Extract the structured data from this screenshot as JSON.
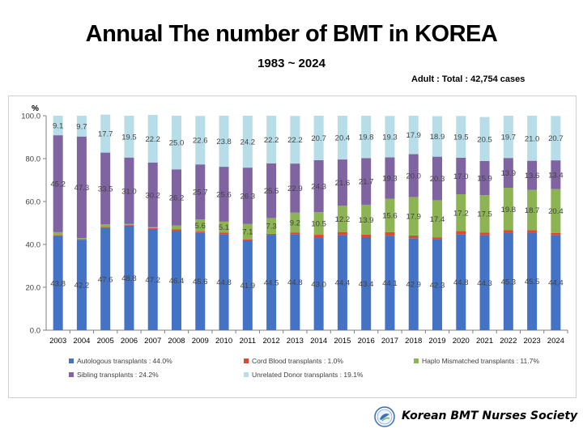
{
  "header": {
    "title": "Annual The number of BMT in KOREA",
    "subtitle": "1983 ~ 2024",
    "total_note": "Adult : Total : 42,754 cases"
  },
  "footer": {
    "organization": "Korean BMT Nurses Society"
  },
  "colors": {
    "autologous": "#4472c4",
    "cord_blood": "#e2472f",
    "haplo": "#8db452",
    "sibling": "#8064a2",
    "unrelated": "#b7dee8",
    "axis": "#7f7f7f"
  },
  "chart_data": {
    "type": "bar",
    "stacked": true,
    "ylabel": "%",
    "ylim": [
      0,
      100
    ],
    "yticks": [
      "0.0",
      "20.0",
      "40.0",
      "60.0",
      "80.0",
      "100.0"
    ],
    "categories": [
      "2003",
      "2004",
      "2005",
      "2006",
      "2007",
      "2008",
      "2009",
      "2010",
      "2011",
      "2012",
      "2013",
      "2014",
      "2015",
      "2016",
      "2017",
      "2018",
      "2019",
      "2020",
      "2021",
      "2022",
      "2023",
      "2024"
    ],
    "series": [
      {
        "name": "Autologous transplants : 44.0%",
        "key": "autologous",
        "values": [
          43.8,
          42.2,
          47.6,
          48.8,
          47.2,
          46.4,
          45.6,
          44.8,
          41.9,
          44.5,
          44.8,
          43.0,
          44.4,
          43.4,
          44.1,
          42.9,
          42.3,
          44.8,
          44.3,
          45.3,
          45.5,
          44.4
        ],
        "labels": [
          "43.8",
          "42.2",
          "47.6",
          "48.8",
          "47.2",
          "46.4",
          "45.6",
          "44.8",
          "41.9",
          "44.5",
          "44.8",
          "43.0",
          "44.4",
          "43.4",
          "44.1",
          "42.9",
          "42.3",
          "44.8",
          "44.3",
          "45.3",
          "45.5",
          "44.4"
        ]
      },
      {
        "name": "Cord Blood transplants : 1.0%",
        "key": "cord_blood",
        "values": [
          0.5,
          0.3,
          0.5,
          0.3,
          0.4,
          0.6,
          0.4,
          0.7,
          0.5,
          0.5,
          0.8,
          1.5,
          1.4,
          1.2,
          1.6,
          1.3,
          0.9,
          1.4,
          1.2,
          1.3,
          1.2,
          1.0
        ],
        "labels": []
      },
      {
        "name": "Haplo Mismatched transplants : 11.7%",
        "key": "haplo",
        "values": [
          1.4,
          0.5,
          1.2,
          0.4,
          0.4,
          1.8,
          5.6,
          5.1,
          7.1,
          7.3,
          9.2,
          10.5,
          12.2,
          13.9,
          15.6,
          17.9,
          17.4,
          17.2,
          17.5,
          19.8,
          18.7,
          20.4
        ],
        "labels": [
          "",
          "",
          "",
          "",
          "",
          "",
          "5.6",
          "5.1",
          "7.1",
          "7.3",
          "9.2",
          "10.5",
          "12.2",
          "13.9",
          "15.6",
          "17.9",
          "17.4",
          "17.2",
          "17.5",
          "19.8",
          "18.7",
          "20.4"
        ]
      },
      {
        "name": "Sibling transplants : 24.2%",
        "key": "sibling",
        "values": [
          45.2,
          47.3,
          33.5,
          31.0,
          30.2,
          26.2,
          25.7,
          25.6,
          26.3,
          25.5,
          22.9,
          24.3,
          21.6,
          21.7,
          19.3,
          20.0,
          20.3,
          17.0,
          15.9,
          13.9,
          13.6,
          13.4
        ],
        "labels": [
          "45.2",
          "47.3",
          "33.5",
          "31.0",
          "30.2",
          "26.2",
          "25.7",
          "25.6",
          "26.3",
          "25.5",
          "22.9",
          "24.3",
          "21.6",
          "21.7",
          "19.3",
          "20.0",
          "20.3",
          "17.0",
          "15.9",
          "13.9",
          "13.6",
          "13.4"
        ]
      },
      {
        "name": "Unrelated Donor  transplants : 19.1%",
        "key": "unrelated",
        "values": [
          9.1,
          9.7,
          17.7,
          19.5,
          22.2,
          25.0,
          22.6,
          23.8,
          24.2,
          22.2,
          22.2,
          20.7,
          20.4,
          19.8,
          19.3,
          17.9,
          18.9,
          19.5,
          20.5,
          19.7,
          21.0,
          20.7
        ],
        "labels": [
          "9.1",
          "9.7",
          "17.7",
          "19.5",
          "22.2",
          "25.0",
          "22.6",
          "23.8",
          "24.2",
          "22.2",
          "22.2",
          "20.7",
          "20.4",
          "19.8",
          "19.3",
          "17.9",
          "18.9",
          "19.5",
          "20.5",
          "19.7",
          "21.0",
          "20.7"
        ]
      }
    ],
    "legend_position": "bottom",
    "grid": false
  }
}
